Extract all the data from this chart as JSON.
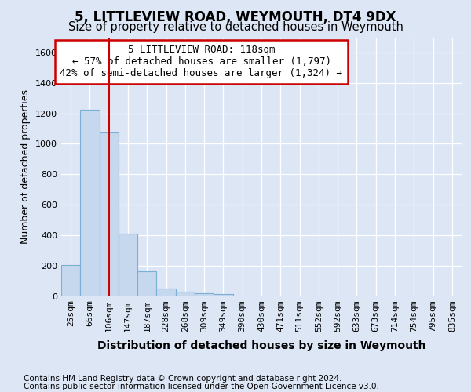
{
  "title": "5, LITTLEVIEW ROAD, WEYMOUTH, DT4 9DX",
  "subtitle": "Size of property relative to detached houses in Weymouth",
  "xlabel": "Distribution of detached houses by size in Weymouth",
  "ylabel": "Number of detached properties",
  "bar_labels": [
    "25sqm",
    "66sqm",
    "106sqm",
    "147sqm",
    "187sqm",
    "228sqm",
    "268sqm",
    "309sqm",
    "349sqm",
    "390sqm",
    "430sqm",
    "471sqm",
    "511sqm",
    "552sqm",
    "592sqm",
    "633sqm",
    "673sqm",
    "714sqm",
    "754sqm",
    "795sqm",
    "835sqm"
  ],
  "bar_values": [
    205,
    1225,
    1075,
    410,
    160,
    50,
    28,
    20,
    15,
    0,
    0,
    0,
    0,
    0,
    0,
    0,
    0,
    0,
    0,
    0,
    0
  ],
  "bar_color": "#c5d8ee",
  "bar_edge_color": "#7bafd4",
  "vline_x": 2,
  "vline_color": "#cc0000",
  "ylim": [
    0,
    1700
  ],
  "yticks": [
    0,
    200,
    400,
    600,
    800,
    1000,
    1200,
    1400,
    1600
  ],
  "annotation_line1": "5 LITTLEVIEW ROAD: 118sqm",
  "annotation_line2": "← 57% of detached houses are smaller (1,797)",
  "annotation_line3": "42% of semi-detached houses are larger (1,324) →",
  "annotation_box_color": "#cc0000",
  "footer_line1": "Contains HM Land Registry data © Crown copyright and database right 2024.",
  "footer_line2": "Contains public sector information licensed under the Open Government Licence v3.0.",
  "background_color": "#dce6f5",
  "plot_bg_color": "#dce6f5",
  "grid_color": "#ffffff",
  "title_fontsize": 12,
  "subtitle_fontsize": 10.5,
  "xlabel_fontsize": 10,
  "ylabel_fontsize": 9,
  "tick_fontsize": 8,
  "footer_fontsize": 7.5,
  "annotation_fontsize": 9
}
